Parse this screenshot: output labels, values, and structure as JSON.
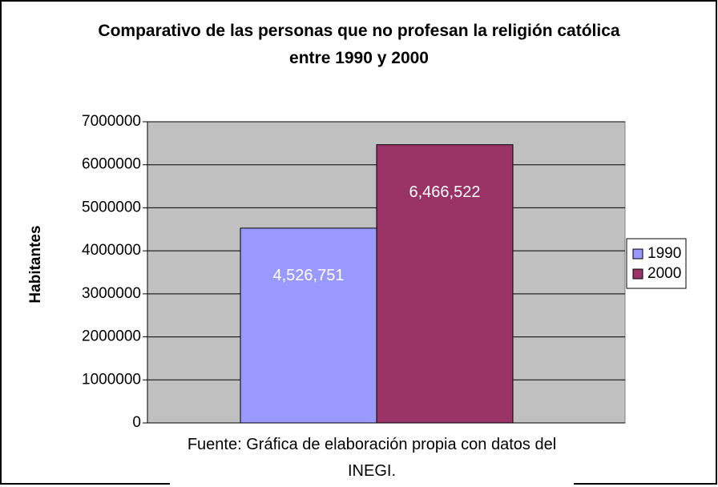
{
  "chart_data": {
    "type": "bar",
    "title": "Comparativo de las personas que no profesan la religión católica entre 1990 y 2000",
    "y_label": "Habitantes",
    "caption": "Fuente: Gráfica de elaboración propia con datos del INEGI.",
    "categories": [
      null
    ],
    "series": [
      {
        "name": "1990",
        "color": "#9999ff",
        "values": [
          4526751
        ],
        "value_labels": [
          "4,526,751"
        ]
      },
      {
        "name": "2000",
        "color": "#993366",
        "values": [
          6466522
        ],
        "value_labels": [
          "6,466,522"
        ]
      }
    ],
    "ylim": [
      0,
      7000000
    ],
    "yticks": [
      0,
      1000000,
      2000000,
      3000000,
      4000000,
      5000000,
      6000000,
      7000000
    ],
    "grid": true,
    "plot_background": "#c0c0c0",
    "legend": "right"
  }
}
